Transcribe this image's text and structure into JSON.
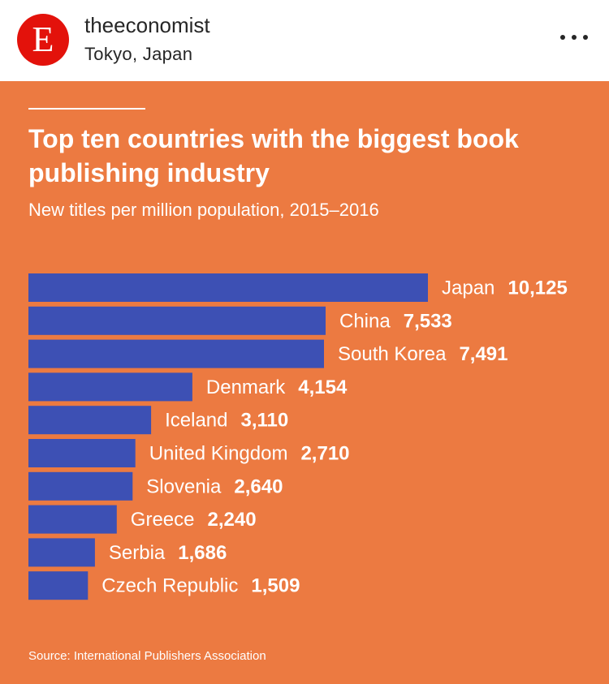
{
  "post": {
    "account_name": "theeconomist",
    "location": "Tokyo, Japan",
    "avatar_letter": "E",
    "avatar_color": "#e3120b",
    "more_icon": "more-horizontal-icon"
  },
  "colors": {
    "background": "#ec7a41",
    "bar": "#3d50b4",
    "text": "#ffffff"
  },
  "chart_data": {
    "type": "bar",
    "orientation": "horizontal",
    "title": "Top ten countries with the biggest book publishing industry",
    "subtitle": "New titles per million population, 2015–2016",
    "categories": [
      "Japan",
      "China",
      "South Korea",
      "Denmark",
      "Iceland",
      "United Kingdom",
      "Slovenia",
      "Greece",
      "Serbia",
      "Czech Republic"
    ],
    "values": [
      10125,
      7533,
      7491,
      4154,
      3110,
      2710,
      2640,
      2240,
      1686,
      1509
    ],
    "value_labels": [
      "10,125",
      "7,533",
      "7,491",
      "4,154",
      "3,110",
      "2,710",
      "2,640",
      "2,240",
      "1,686",
      "1,509"
    ],
    "xlim": [
      0,
      10125
    ],
    "grid": false,
    "source": "Source: International Publishers Association"
  }
}
